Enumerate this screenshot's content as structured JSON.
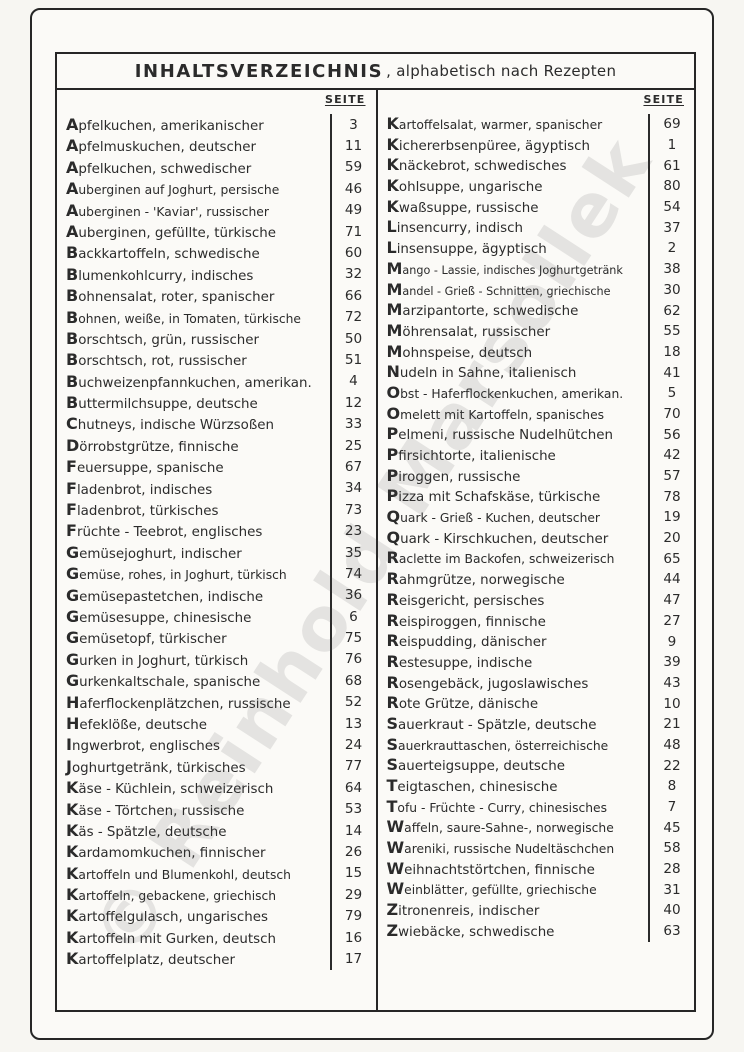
{
  "page": {
    "title_main": "INHALTSVERZEICHNIS",
    "title_sub": ", alphabetisch nach Rezepten",
    "seite_label": "SEITE",
    "watermark": "© Reinhold Marsollek"
  },
  "columns": {
    "left": [
      {
        "name": "Apfelkuchen, amerikanischer",
        "page": "3"
      },
      {
        "name": "Apfelmuskuchen, deutscher",
        "page": "11"
      },
      {
        "name": "Apfelkuchen, schwedischer",
        "page": "59"
      },
      {
        "name": "Auberginen auf Joghurt, persische",
        "page": "46"
      },
      {
        "name": "Auberginen - 'Kaviar', russischer",
        "page": "49"
      },
      {
        "name": "Auberginen, gefüllte, türkische",
        "page": "71"
      },
      {
        "name": "Backkartoffeln, schwedische",
        "page": "60"
      },
      {
        "name": "Blumenkohlcurry, indisches",
        "page": "32"
      },
      {
        "name": "Bohnensalat, roter, spanischer",
        "page": "66"
      },
      {
        "name": "Bohnen, weiße, in Tomaten, türkische",
        "page": "72"
      },
      {
        "name": "Borschtsch, grün, russischer",
        "page": "50"
      },
      {
        "name": "Borschtsch, rot, russischer",
        "page": "51"
      },
      {
        "name": "Buchweizenpfannkuchen, amerikan.",
        "page": "4"
      },
      {
        "name": "Buttermilchsuppe, deutsche",
        "page": "12"
      },
      {
        "name": "Chutneys, indische Würzsoßen",
        "page": "33"
      },
      {
        "name": "Dörrobstgrütze, finnische",
        "page": "25"
      },
      {
        "name": "Feuersuppe, spanische",
        "page": "67"
      },
      {
        "name": "Fladenbrot, indisches",
        "page": "34"
      },
      {
        "name": "Fladenbrot, türkisches",
        "page": "73"
      },
      {
        "name": "Früchte - Teebrot, englisches",
        "page": "23"
      },
      {
        "name": "Gemüsejoghurt, indischer",
        "page": "35"
      },
      {
        "name": "Gemüse, rohes, in Joghurt, türkisch",
        "page": "74"
      },
      {
        "name": "Gemüsepastetchen, indische",
        "page": "36"
      },
      {
        "name": "Gemüsesuppe, chinesische",
        "page": "6"
      },
      {
        "name": "Gemüsetopf, türkischer",
        "page": "75"
      },
      {
        "name": "Gurken in Joghurt, türkisch",
        "page": "76"
      },
      {
        "name": "Gurkenkaltschale, spanische",
        "page": "68"
      },
      {
        "name": "Haferflockenplätzchen, russische",
        "page": "52"
      },
      {
        "name": "Hefeklöße, deutsche",
        "page": "13"
      },
      {
        "name": "Ingwerbrot, englisches",
        "page": "24"
      },
      {
        "name": "Joghurtgetränk, türkisches",
        "page": "77"
      },
      {
        "name": "Käse - Küchlein, schweizerisch",
        "page": "64"
      },
      {
        "name": "Käse - Törtchen, russische",
        "page": "53"
      },
      {
        "name": "Käs - Spätzle, deutsche",
        "page": "14"
      },
      {
        "name": "Kardamomkuchen, finnischer",
        "page": "26"
      },
      {
        "name": "Kartoffeln und Blumenkohl, deutsch",
        "page": "15"
      },
      {
        "name": "Kartoffeln, gebackene, griechisch",
        "page": "29"
      },
      {
        "name": "Kartoffelgulasch, ungarisches",
        "page": "79"
      },
      {
        "name": "Kartoffeln mit Gurken, deutsch",
        "page": "16"
      },
      {
        "name": "Kartoffelplatz, deutscher",
        "page": "17"
      }
    ],
    "right": [
      {
        "name": "Kartoffelsalat, warmer, spanischer",
        "page": "69"
      },
      {
        "name": "Kichererbsenpüree, ägyptisch",
        "page": "1"
      },
      {
        "name": "Knäckebrot, schwedisches",
        "page": "61"
      },
      {
        "name": "Kohlsuppe, ungarische",
        "page": "80"
      },
      {
        "name": "Kwaßsuppe, russische",
        "page": "54"
      },
      {
        "name": "Linsencurry, indisch",
        "page": "37"
      },
      {
        "name": "Linsensuppe, ägyptisch",
        "page": "2"
      },
      {
        "name": "Mango - Lassie, indisches Joghurtgetränk",
        "page": "38"
      },
      {
        "name": "Mandel - Grieß - Schnitten, griechische",
        "page": "30"
      },
      {
        "name": "Marzipantorte, schwedische",
        "page": "62"
      },
      {
        "name": "Möhrensalat, russischer",
        "page": "55"
      },
      {
        "name": "Mohnspeise, deutsch",
        "page": "18"
      },
      {
        "name": "Nudeln in Sahne, italienisch",
        "page": "41"
      },
      {
        "name": "Obst - Haferflockenkuchen, amerikan.",
        "page": "5"
      },
      {
        "name": "Omelett mit Kartoffeln, spanisches",
        "page": "70"
      },
      {
        "name": "Pelmeni, russische Nudelhütchen",
        "page": "56"
      },
      {
        "name": "Pfirsichtorte, italienische",
        "page": "42"
      },
      {
        "name": "Piroggen, russische",
        "page": "57"
      },
      {
        "name": "Pizza mit Schafskäse, türkische",
        "page": "78"
      },
      {
        "name": "Quark - Grieß - Kuchen, deutscher",
        "page": "19"
      },
      {
        "name": "Quark - Kirschkuchen, deutscher",
        "page": "20"
      },
      {
        "name": "Raclette im Backofen, schweizerisch",
        "page": "65"
      },
      {
        "name": "Rahmgrütze, norwegische",
        "page": "44"
      },
      {
        "name": "Reisgericht, persisches",
        "page": "47"
      },
      {
        "name": "Reispiroggen, finnische",
        "page": "27"
      },
      {
        "name": "Reispudding, dänischer",
        "page": "9"
      },
      {
        "name": "Restesuppe, indische",
        "page": "39"
      },
      {
        "name": "Rosengebäck, jugoslawisches",
        "page": "43"
      },
      {
        "name": "Rote Grütze, dänische",
        "page": "10"
      },
      {
        "name": "Sauerkraut - Spätzle, deutsche",
        "page": "21"
      },
      {
        "name": "Sauerkrauttaschen, österreichische",
        "page": "48"
      },
      {
        "name": "Sauerteigsuppe, deutsche",
        "page": "22"
      },
      {
        "name": "Teigtaschen, chinesische",
        "page": "8"
      },
      {
        "name": "Tofu - Früchte - Curry, chinesisches",
        "page": "7"
      },
      {
        "name": "Waffeln, saure-Sahne-, norwegische",
        "page": "45"
      },
      {
        "name": "Wareniki, russische Nudeltäschchen",
        "page": "58"
      },
      {
        "name": "Weihnachtstörtchen, finnische",
        "page": "28"
      },
      {
        "name": "Weinblätter, gefüllte, griechische",
        "page": "31"
      },
      {
        "name": "Zitronenreis, indischer",
        "page": "40"
      },
      {
        "name": "Zwiebäcke, schwedische",
        "page": "63"
      }
    ]
  }
}
